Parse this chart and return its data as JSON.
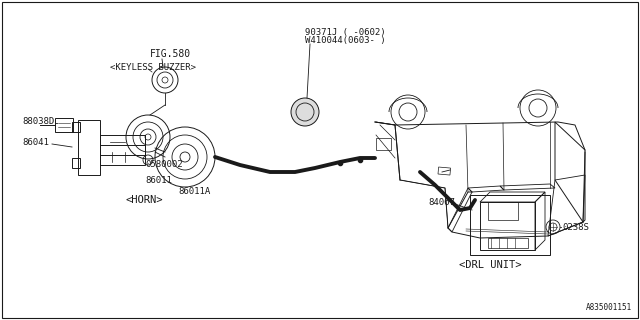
{
  "bg_color": "#ffffff",
  "line_color": "#1a1a1a",
  "fig_ref": "FIG.580",
  "part_numbers": {
    "keyless_buzzer_label": "<KEYLESS BUZZER>",
    "horn_label": "<HORN>",
    "drl_unit_label": "<DRL UNIT>",
    "p88038d": "88038D",
    "p86041": "86041",
    "p86011": "86011",
    "p86011a": "86011A",
    "p0580002": "0580002",
    "p90371j": "90371J ( -0602)",
    "w410044": "W410044(0603- )",
    "p84067": "84067",
    "p0238s": "0238S"
  },
  "watermark": "A835001151",
  "font_size_small": 6.5,
  "font_size_label": 7.5
}
